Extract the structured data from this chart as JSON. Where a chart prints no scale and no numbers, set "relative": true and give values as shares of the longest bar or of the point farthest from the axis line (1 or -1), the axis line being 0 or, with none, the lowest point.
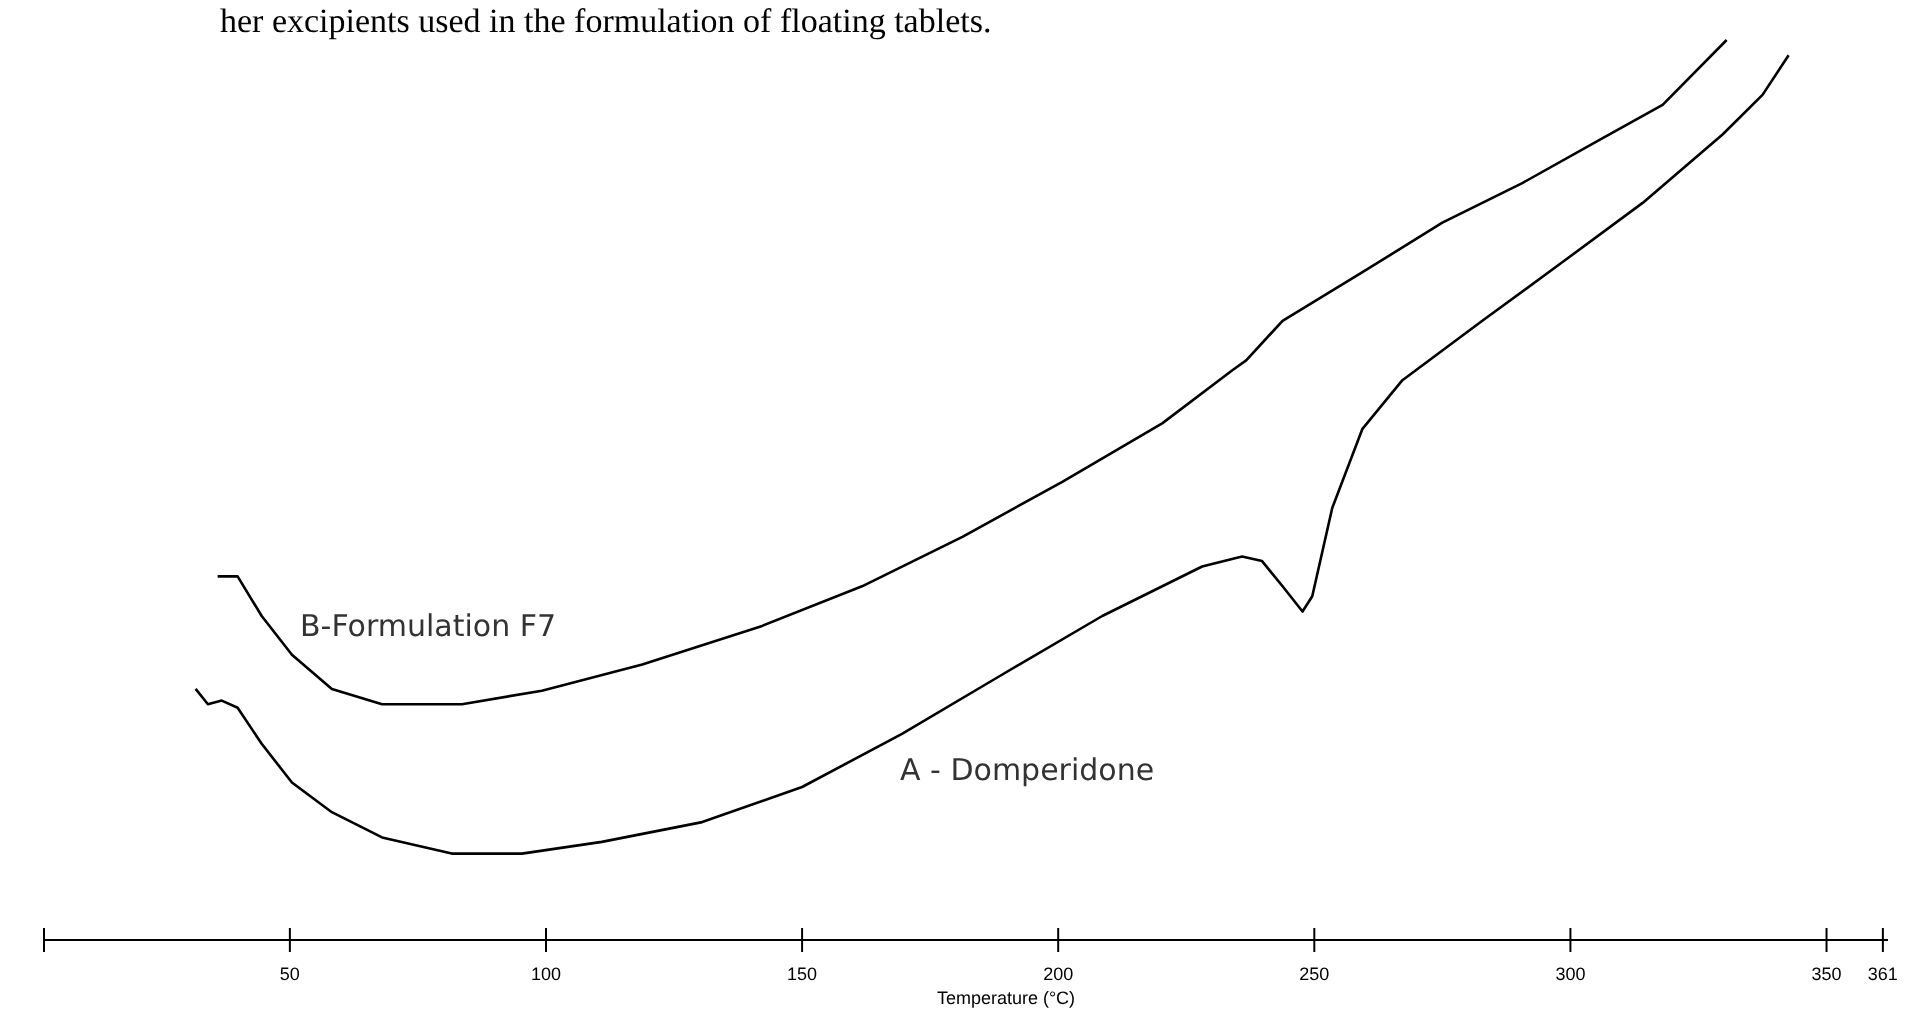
{
  "chart_data": {
    "type": "line",
    "relative": true,
    "xlabel": "Temperature (°C)",
    "xlim": [
      2,
      362
    ],
    "xticks": [
      {
        "value": 2,
        "label": null
      },
      50,
      100,
      150,
      200,
      250,
      300,
      350,
      361
    ],
    "annotations": [
      "her excipients used in the formulation of floating tablets."
    ],
    "grid": false,
    "marker": "none",
    "line_style": "solid",
    "series": [
      {
        "name": "B-Formulation F7",
        "color": "#000000",
        "x": [
          35.9,
          39.8,
          44.5,
          50.4,
          58.2,
          68.0,
          83.6,
          99.2,
          118.8,
          142.2,
          161.7,
          181.3,
          200.8,
          220.3,
          234.0,
          236.7,
          243.8,
          259.4,
          275.0,
          290.6,
          306.3,
          318.0,
          330.5
        ],
        "values": [
          0.404,
          0.404,
          0.36,
          0.317,
          0.279,
          0.262,
          0.262,
          0.277,
          0.306,
          0.349,
          0.393,
          0.448,
          0.509,
          0.574,
          0.633,
          0.644,
          0.688,
          0.742,
          0.797,
          0.841,
          0.891,
          0.928,
          1.0
        ]
      },
      {
        "name": "A - Domperidone",
        "color": "#000000",
        "x": [
          31.6,
          34.0,
          36.7,
          39.8,
          44.5,
          50.4,
          58.2,
          68.0,
          81.6,
          95.3,
          110.9,
          130.5,
          150.0,
          169.5,
          189.1,
          208.6,
          228.1,
          235.9,
          239.8,
          243.8,
          247.7,
          249.6,
          253.5,
          259.4,
          267.2,
          282.8,
          298.4,
          314.1,
          329.7,
          337.5,
          342.6
        ],
        "values": [
          0.279,
          0.262,
          0.266,
          0.258,
          0.218,
          0.175,
          0.142,
          0.114,
          0.096,
          0.096,
          0.109,
          0.131,
          0.17,
          0.229,
          0.295,
          0.36,
          0.415,
          0.426,
          0.421,
          0.393,
          0.365,
          0.382,
          0.48,
          0.568,
          0.622,
          0.688,
          0.753,
          0.819,
          0.895,
          0.939,
          0.983
        ]
      }
    ]
  }
}
